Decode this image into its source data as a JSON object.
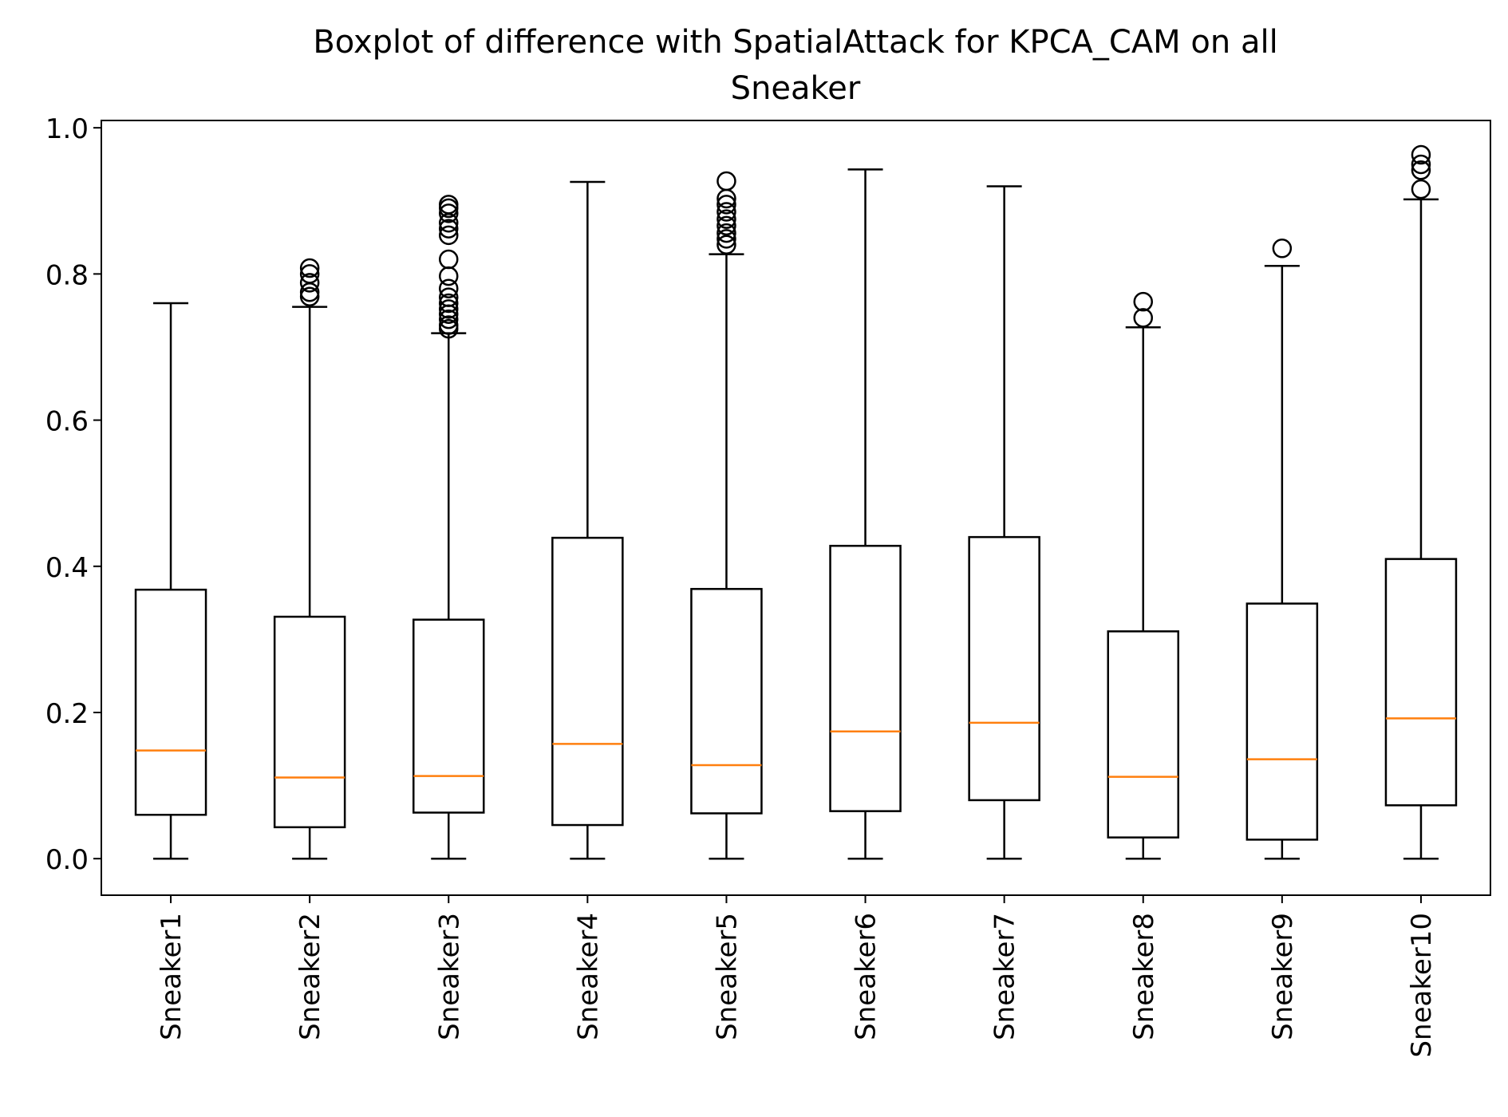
{
  "chart_data": {
    "type": "boxplot",
    "title": "Boxplot of difference with SpatialAttack for KPCA_CAM on all Sneaker",
    "title_lines": [
      "Boxplot of difference with SpatialAttack for KPCA_CAM on all",
      "Sneaker"
    ],
    "xlabel": "",
    "ylabel": "",
    "ylim": [
      -0.05,
      1.01
    ],
    "yticks": [
      0.0,
      0.2,
      0.4,
      0.6,
      0.8,
      1.0
    ],
    "ytick_labels": [
      "0.0",
      "0.2",
      "0.4",
      "0.6",
      "0.8",
      "1.0"
    ],
    "categories": [
      "Sneaker1",
      "Sneaker2",
      "Sneaker3",
      "Sneaker4",
      "Sneaker5",
      "Sneaker6",
      "Sneaker7",
      "Sneaker8",
      "Sneaker9",
      "Sneaker10"
    ],
    "boxes": [
      {
        "label": "Sneaker1",
        "whislo": 0.0,
        "q1": 0.06,
        "med": 0.148,
        "q3": 0.368,
        "whishi": 0.76,
        "fliers": []
      },
      {
        "label": "Sneaker2",
        "whislo": 0.0,
        "q1": 0.043,
        "med": 0.111,
        "q3": 0.331,
        "whishi": 0.755,
        "fliers": [
          0.769,
          0.775,
          0.788,
          0.8,
          0.808
        ]
      },
      {
        "label": "Sneaker3",
        "whislo": 0.0,
        "q1": 0.063,
        "med": 0.113,
        "q3": 0.327,
        "whishi": 0.719,
        "fliers": [
          0.725,
          0.73,
          0.738,
          0.745,
          0.752,
          0.76,
          0.768,
          0.78,
          0.797,
          0.82,
          0.853,
          0.862,
          0.87,
          0.883,
          0.89,
          0.895
        ]
      },
      {
        "label": "Sneaker4",
        "whislo": 0.0,
        "q1": 0.046,
        "med": 0.157,
        "q3": 0.439,
        "whishi": 0.926,
        "fliers": []
      },
      {
        "label": "Sneaker5",
        "whislo": 0.0,
        "q1": 0.062,
        "med": 0.128,
        "q3": 0.369,
        "whishi": 0.827,
        "fliers": [
          0.84,
          0.848,
          0.856,
          0.866,
          0.875,
          0.885,
          0.895,
          0.903,
          0.927
        ]
      },
      {
        "label": "Sneaker6",
        "whislo": 0.0,
        "q1": 0.065,
        "med": 0.174,
        "q3": 0.428,
        "whishi": 0.943,
        "fliers": []
      },
      {
        "label": "Sneaker7",
        "whislo": 0.0,
        "q1": 0.08,
        "med": 0.186,
        "q3": 0.44,
        "whishi": 0.92,
        "fliers": []
      },
      {
        "label": "Sneaker8",
        "whislo": 0.0,
        "q1": 0.029,
        "med": 0.112,
        "q3": 0.311,
        "whishi": 0.727,
        "fliers": [
          0.74,
          0.762
        ]
      },
      {
        "label": "Sneaker9",
        "whislo": 0.0,
        "q1": 0.026,
        "med": 0.136,
        "q3": 0.349,
        "whishi": 0.811,
        "fliers": [
          0.835
        ]
      },
      {
        "label": "Sneaker10",
        "whislo": 0.0,
        "q1": 0.073,
        "med": 0.192,
        "q3": 0.41,
        "whishi": 0.902,
        "fliers": [
          0.916,
          0.942,
          0.95,
          0.963
        ]
      }
    ],
    "grid": false,
    "legend": "none",
    "colors": {
      "box": "#000000",
      "median": "#ff7f0e",
      "flier": "#000000",
      "background": "#ffffff"
    }
  }
}
